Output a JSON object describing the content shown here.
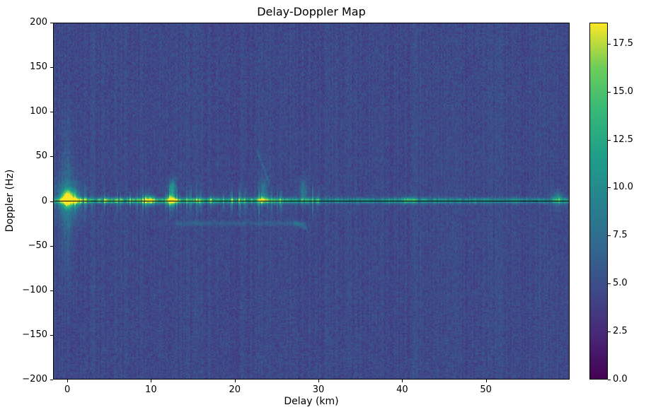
{
  "chart_data": {
    "type": "heatmap",
    "title": "Delay-Doppler Map",
    "xlabel": "Delay (km)",
    "ylabel": "Doppler (Hz)",
    "xlim": [
      -1.7,
      60.0
    ],
    "ylim": [
      -200,
      200
    ],
    "x_ticks": [
      {
        "value": 0,
        "label": "0"
      },
      {
        "value": 10,
        "label": "10"
      },
      {
        "value": 20,
        "label": "20"
      },
      {
        "value": 30,
        "label": "30"
      },
      {
        "value": 40,
        "label": "40"
      },
      {
        "value": 50,
        "label": "50"
      }
    ],
    "y_ticks": [
      {
        "value": 200,
        "label": "200"
      },
      {
        "value": 150,
        "label": "150"
      },
      {
        "value": 100,
        "label": "100"
      },
      {
        "value": 50,
        "label": "50"
      },
      {
        "value": 0,
        "label": "0"
      },
      {
        "value": -50,
        "label": "−50"
      },
      {
        "value": -100,
        "label": "−100"
      },
      {
        "value": -150,
        "label": "−150"
      },
      {
        "value": -200,
        "label": "−200"
      }
    ],
    "colormap": "viridis",
    "colorbar": {
      "vmin": 0,
      "vmax": 18.6,
      "ticks": [
        {
          "value": 0.0,
          "label": "0.0"
        },
        {
          "value": 2.5,
          "label": "2.5"
        },
        {
          "value": 5.0,
          "label": "5.0"
        },
        {
          "value": 7.5,
          "label": "7.5"
        },
        {
          "value": 10.0,
          "label": "10.0"
        },
        {
          "value": 12.5,
          "label": "12.5"
        },
        {
          "value": 15.0,
          "label": "15.0"
        },
        {
          "value": 17.5,
          "label": "17.5"
        }
      ]
    },
    "zero_doppler_line": {
      "doppler": 0,
      "color": "#000000"
    },
    "noise": {
      "seed": 42,
      "base": 3.3,
      "spread": 2.6
    },
    "features": [
      {
        "kind": "blob",
        "name": "direct-signal-peak",
        "delay": 0.1,
        "doppler": 3,
        "sx": 0.6,
        "sy": 6,
        "amp": 14
      },
      {
        "kind": "blob",
        "name": "direct-signal-glow",
        "delay": 0.1,
        "doppler": 2,
        "sx": 1.3,
        "sy": 18,
        "amp": 3
      },
      {
        "kind": "vstreak",
        "name": "zero-delay-column",
        "delay": 0,
        "sx": 0.45,
        "center": 0,
        "halfspan": 120,
        "amp": 2.4
      },
      {
        "kind": "ridge",
        "name": "zero-doppler-ridge",
        "doppler": 0.5,
        "sy": 2.1,
        "segments": [
          [
            -1.7,
            0,
            5,
            9.5
          ],
          [
            0,
            13,
            10,
            9
          ],
          [
            13,
            30,
            9,
            7.5
          ],
          [
            30,
            38,
            6,
            5.6
          ],
          [
            38,
            48,
            6.6,
            6.2
          ],
          [
            48,
            60,
            5.6,
            5.2
          ]
        ]
      },
      {
        "kind": "blob",
        "name": "echo-9.7km",
        "delay": 9.7,
        "doppler": 1,
        "sx": 0.45,
        "sy": 4,
        "amp": 8
      },
      {
        "kind": "blob",
        "name": "echo-12.4km",
        "delay": 12.4,
        "doppler": 1,
        "sx": 0.35,
        "sy": 4.5,
        "amp": 11
      },
      {
        "kind": "blob",
        "name": "echo-12.5km-upper",
        "delay": 12.55,
        "doppler": 15,
        "sx": 0.3,
        "sy": 6,
        "amp": 6
      },
      {
        "kind": "blob",
        "name": "echo-23.4km",
        "delay": 23.4,
        "doppler": 2,
        "sx": 0.4,
        "sy": 4,
        "amp": 6
      },
      {
        "kind": "blob",
        "name": "echo-23.4km-upper",
        "delay": 23.4,
        "doppler": 14,
        "sx": 0.3,
        "sy": 7,
        "amp": 3.5
      },
      {
        "kind": "seg",
        "name": "diagonal-streak",
        "d0": 22.6,
        "f0": 58,
        "d1": 24.2,
        "f1": 18,
        "sy": 2.2,
        "amp": 2.4
      },
      {
        "kind": "blob",
        "name": "echo-28.2km-upper",
        "delay": 28.2,
        "doppler": 10,
        "sx": 0.3,
        "sy": 9,
        "amp": 4
      },
      {
        "kind": "hline",
        "name": "negative-doppler-trail",
        "doppler": -25,
        "d0": 13,
        "d1": 28.6,
        "sy": 2,
        "amp": 1.7
      },
      {
        "kind": "seg",
        "name": "trail-hook",
        "d0": 27.0,
        "f0": -23,
        "d1": 28.8,
        "f1": -32,
        "sy": 1.8,
        "amp": 2.2
      },
      {
        "kind": "blob",
        "name": "echo-40.8km",
        "delay": 40.8,
        "doppler": 1,
        "sx": 0.5,
        "sy": 3,
        "amp": 3.5
      },
      {
        "kind": "blob",
        "name": "echo-58.6km",
        "delay": 58.6,
        "doppler": 3,
        "sx": 0.45,
        "sy": 5,
        "amp": 5
      },
      {
        "kind": "fuzz",
        "name": "multipath-fuzz-near",
        "d0": -0.5,
        "d1": 30.5,
        "prob": 0.45,
        "ampMax": 5,
        "spanMin": 6,
        "spanMax": 22
      },
      {
        "kind": "fuzz",
        "name": "multipath-fuzz-far",
        "d0": 30.5,
        "d1": 60,
        "prob": 0.2,
        "ampMax": 2.2,
        "spanMin": 3,
        "spanMax": 10
      }
    ]
  }
}
